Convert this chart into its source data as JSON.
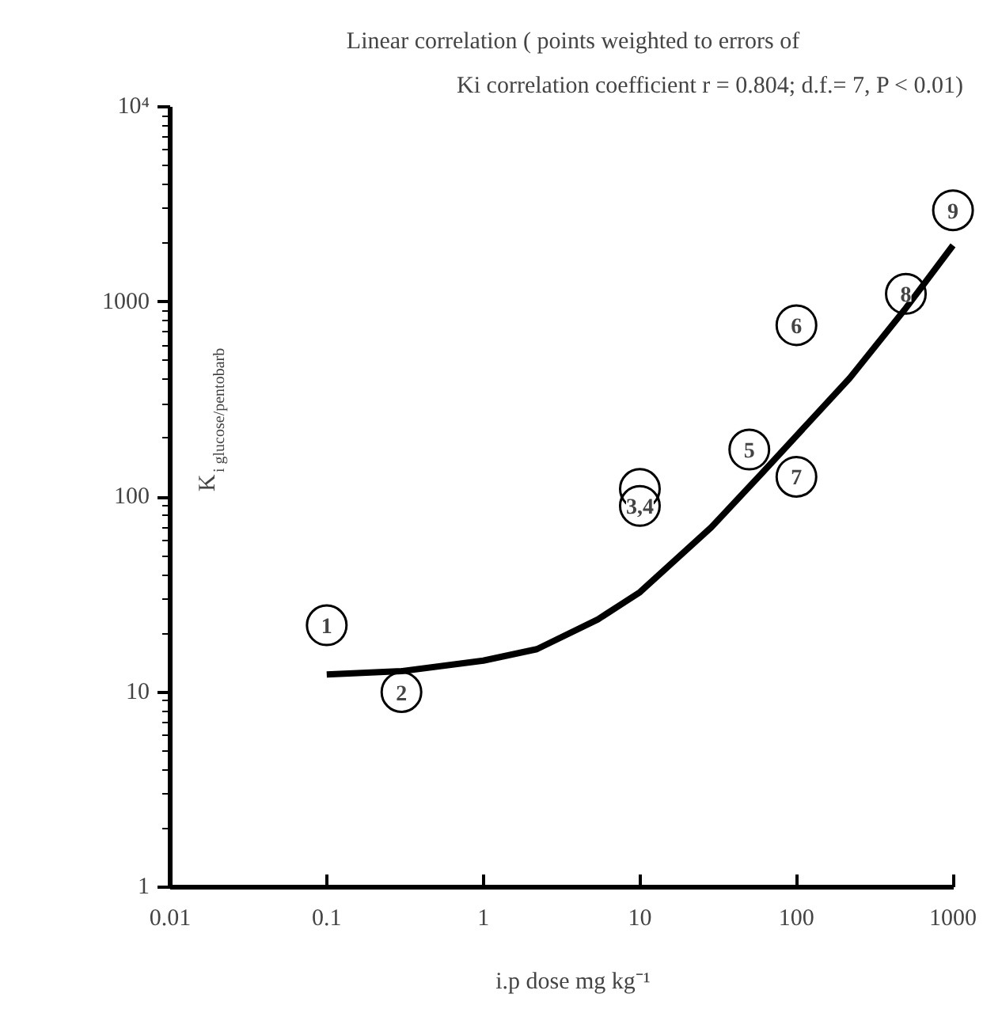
{
  "chart_data": {
    "type": "scatter",
    "title": "Linear correlation ( points weighted to errors of",
    "subtitle": "Ki correlation coefficient r  = 0.804; d.f.= 7,  P < 0.01)",
    "xlabel": "i.p dose mg kg⁻¹",
    "ylabel": "K$_{i glucose/pentobarb}$",
    "log": "xy",
    "xlim": [
      0.01,
      1000
    ],
    "ylim": [
      1,
      10000
    ],
    "xticks": [
      0.01,
      0.1,
      1,
      10,
      100,
      1000
    ],
    "yticks": [
      1,
      10,
      100,
      1000,
      {
        "value": 10000,
        "label": "10⁴"
      }
    ],
    "grid": false,
    "series": [
      {
        "type": "scatter",
        "marker": "circle",
        "color": "#000000",
        "x": [
          0.1,
          0.3,
          10,
          10,
          50,
          100,
          100,
          500,
          1000
        ],
        "values": [
          22,
          10,
          110,
          90,
          175,
          760,
          127,
          1100,
          2950
        ]
      },
      {
        "type": "line",
        "color": "#000000",
        "line_style": "solid",
        "x": [
          0.1,
          0.3,
          1,
          2.2,
          5.4,
          10,
          28.6,
          60,
          219,
          490,
          1000
        ],
        "values": [
          12.3,
          12.8,
          14.5,
          16.6,
          23.6,
          32.5,
          70,
          132,
          407,
          910,
          1950
        ]
      }
    ],
    "annotations": [
      {
        "text": "1",
        "x": 0.1,
        "y": 22
      },
      {
        "text": "2",
        "x": 0.3,
        "y": 10
      },
      {
        "text": "3,4",
        "x": 10,
        "y": 90
      },
      {
        "text": "5",
        "x": 50,
        "y": 175
      },
      {
        "text": "6",
        "x": 100,
        "y": 760
      },
      {
        "text": "7",
        "x": 100,
        "y": 127
      },
      {
        "text": "8",
        "x": 500,
        "y": 1100
      },
      {
        "text": "9",
        "x": 1000,
        "y": 2950
      }
    ]
  }
}
